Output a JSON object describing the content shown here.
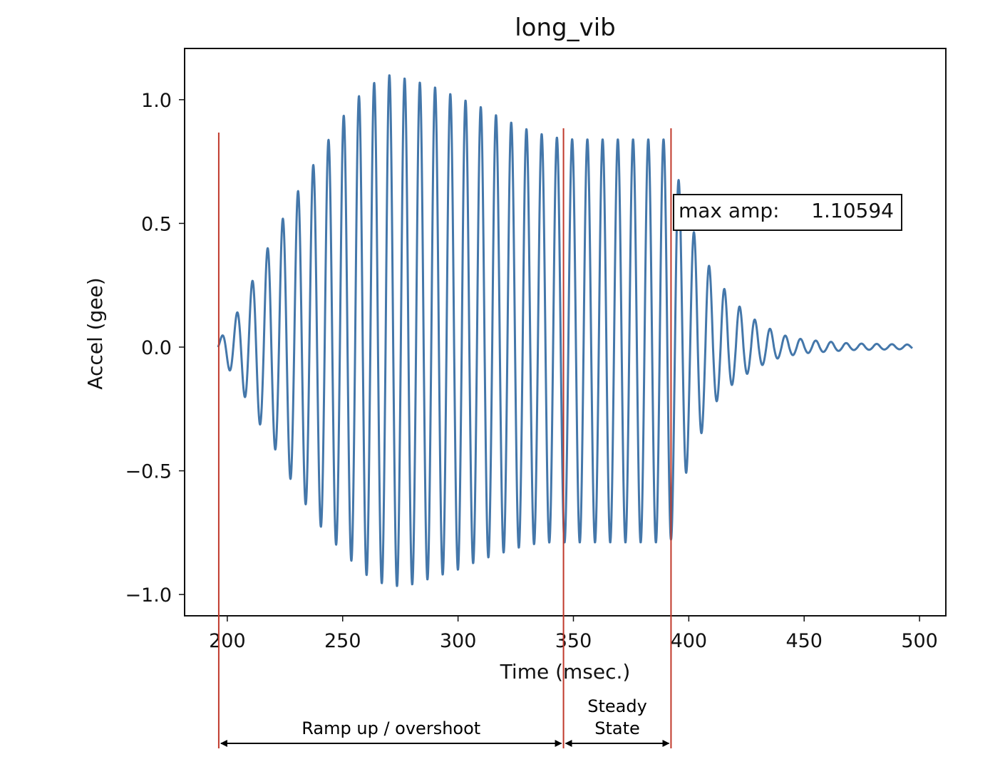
{
  "chart_data": {
    "type": "line",
    "title": "long_vib",
    "xlabel": "Time (msec.)",
    "ylabel": "Accel (gee)",
    "xlim": [
      181.5,
      511.4
    ],
    "ylim": [
      -1.086,
      1.207
    ],
    "xticks": [
      200,
      250,
      300,
      350,
      400,
      450,
      500
    ],
    "xtick_labels": [
      "200",
      "250",
      "300",
      "350",
      "400",
      "450",
      "500"
    ],
    "yticks": [
      1.0,
      0.5,
      0.0,
      -0.5,
      -1.0
    ],
    "ytick_labels": [
      "1.0",
      "0.5",
      "0.0",
      "−0.5",
      "−1.0"
    ],
    "grid": false,
    "series_color": "#4477aa",
    "signal": {
      "t_start": 196,
      "t_end": 497,
      "period_ms": 6.6,
      "envelope_positive": [
        [
          196,
          0.02
        ],
        [
          200,
          0.08
        ],
        [
          205,
          0.15
        ],
        [
          210,
          0.25
        ],
        [
          220,
          0.45
        ],
        [
          230,
          0.62
        ],
        [
          240,
          0.78
        ],
        [
          250,
          0.93
        ],
        [
          260,
          1.05
        ],
        [
          270,
          1.1
        ],
        [
          280,
          1.08
        ],
        [
          290,
          1.05
        ],
        [
          300,
          1.01
        ],
        [
          310,
          0.97
        ],
        [
          320,
          0.92
        ],
        [
          330,
          0.88
        ],
        [
          340,
          0.85
        ],
        [
          350,
          0.84
        ],
        [
          392,
          0.84
        ],
        [
          395,
          0.7
        ],
        [
          400,
          0.5
        ],
        [
          405,
          0.42
        ],
        [
          410,
          0.3
        ],
        [
          420,
          0.18
        ],
        [
          430,
          0.1
        ],
        [
          440,
          0.05
        ],
        [
          450,
          0.03
        ],
        [
          470,
          0.015
        ],
        [
          497,
          0.01
        ]
      ],
      "envelope_negative": [
        [
          196,
          0.02
        ],
        [
          200,
          0.08
        ],
        [
          205,
          0.15
        ],
        [
          210,
          0.25
        ],
        [
          220,
          0.4
        ],
        [
          230,
          0.58
        ],
        [
          240,
          0.72
        ],
        [
          250,
          0.83
        ],
        [
          260,
          0.92
        ],
        [
          270,
          0.97
        ],
        [
          280,
          0.96
        ],
        [
          290,
          0.93
        ],
        [
          300,
          0.9
        ],
        [
          310,
          0.86
        ],
        [
          320,
          0.83
        ],
        [
          330,
          0.8
        ],
        [
          340,
          0.79
        ],
        [
          350,
          0.79
        ],
        [
          392,
          0.79
        ],
        [
          395,
          0.68
        ],
        [
          400,
          0.46
        ],
        [
          405,
          0.36
        ],
        [
          410,
          0.24
        ],
        [
          420,
          0.14
        ],
        [
          430,
          0.08
        ],
        [
          440,
          0.04
        ],
        [
          450,
          0.025
        ],
        [
          470,
          0.012
        ],
        [
          497,
          0.008
        ]
      ]
    },
    "annotation_box": {
      "label": "max amp:",
      "value": "1.10594"
    },
    "markers": {
      "color": "#c0392b",
      "lines_x": [
        196.3,
        345.7,
        392.3
      ],
      "spans": [
        {
          "label": "Ramp up / overshoot",
          "from": 196.3,
          "to": 345.7
        },
        {
          "label_line1": "Steady",
          "label_line2": "State",
          "from": 345.7,
          "to": 392.3
        }
      ]
    }
  }
}
